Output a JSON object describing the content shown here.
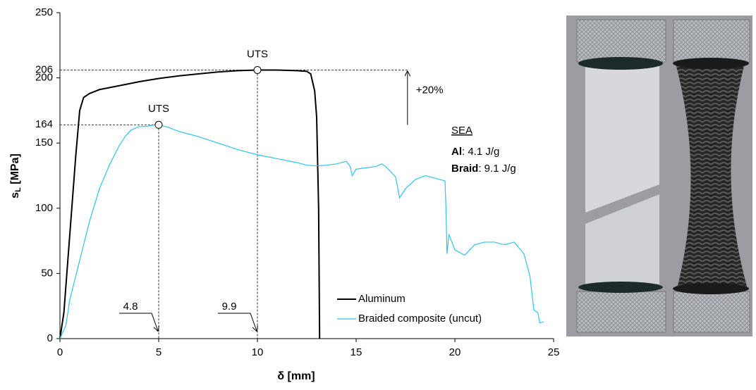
{
  "chart_data": {
    "type": "line",
    "y_label": {
      "main": "s",
      "sub": "L",
      "unit": " [MPa]"
    },
    "x_label": "δ [mm]",
    "xlim": [
      0,
      25
    ],
    "xticks": [
      0,
      5,
      10,
      15,
      20,
      25
    ],
    "ylim": [
      0,
      250
    ],
    "yticks": [
      0,
      50,
      100,
      150,
      200,
      250
    ],
    "series": [
      {
        "name": "Aluminum",
        "color": "#000000",
        "x": [
          0,
          0.2,
          0.5,
          0.8,
          1,
          1.2,
          1.5,
          2,
          3,
          4,
          5,
          6,
          7,
          8,
          9,
          10,
          11,
          12,
          12.5,
          12.7,
          12.9,
          13,
          13.1,
          13.15
        ],
        "y": [
          0,
          20,
          80,
          140,
          175,
          185,
          188,
          191,
          194,
          197,
          199.5,
          201.5,
          203,
          204.5,
          205.5,
          206,
          206,
          205.5,
          205,
          203,
          190,
          170,
          100,
          0
        ]
      },
      {
        "name": "Braided composite (uncut)",
        "color": "#2ec4ec",
        "x": [
          0,
          0.3,
          0.5,
          1,
          1.5,
          2,
          2.5,
          3,
          3.3,
          3.6,
          4,
          4.5,
          4.8,
          5,
          5.5,
          6,
          6.5,
          7,
          8,
          9,
          10,
          11,
          12,
          12.5,
          13,
          13.5,
          14,
          14.5,
          14.7,
          14.8,
          15,
          15.5,
          16,
          16.3,
          16.5,
          17,
          17.2,
          17.5,
          18,
          18.5,
          19,
          19.5,
          19.55,
          19.6,
          19.7,
          20,
          20.5,
          21,
          21.5,
          22,
          22.5,
          23,
          23.5,
          23.8,
          24,
          24.2,
          24.3,
          24.5
        ],
        "y": [
          0,
          10,
          30,
          60,
          90,
          115,
          133,
          148,
          155,
          160,
          162.5,
          163,
          164,
          164,
          162,
          159,
          157,
          155,
          150,
          145,
          141,
          138,
          135,
          133,
          132.5,
          133,
          134,
          136,
          132,
          125,
          130,
          131,
          132,
          134,
          132,
          124,
          108,
          115,
          122,
          125,
          123,
          121,
          100,
          65,
          80,
          68,
          64,
          72,
          74,
          74,
          72,
          74,
          65,
          48,
          22,
          20,
          12,
          13
        ]
      }
    ],
    "uts_points": [
      {
        "label": "UTS",
        "x": 10,
        "y": 206,
        "x_label": "9.9",
        "y_label": "206"
      },
      {
        "label": "UTS",
        "x": 5,
        "y": 164,
        "x_label": "4.8",
        "y_label": "164"
      }
    ],
    "gain_label": "+20%",
    "sea": {
      "title": "SEA",
      "rows": [
        {
          "name": "Al",
          "value": ": 4.1 J/g"
        },
        {
          "name": "Braid",
          "value": ": 9.1 J/g"
        }
      ]
    },
    "label_color": "#33d6f0"
  }
}
